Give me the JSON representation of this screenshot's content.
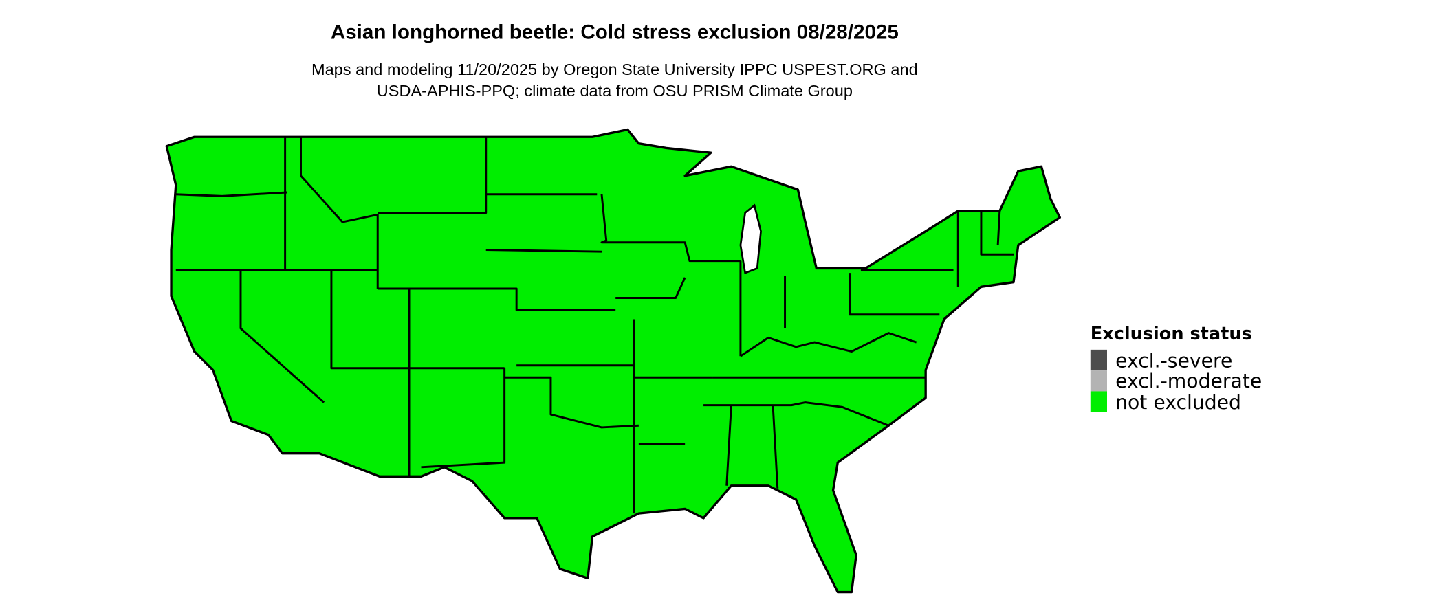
{
  "title": "Asian longhorned beetle: Cold stress exclusion 08/28/2025",
  "subtitle_line1": "Maps and modeling 11/20/2025 by Oregon State University IPPC USPEST.ORG and",
  "subtitle_line2": "USDA-APHIS-PPQ; climate data from OSU PRISM Climate Group",
  "map": {
    "region": "Contiguous United States",
    "fill_status": "not excluded",
    "fill_color": "#00EE00"
  },
  "legend": {
    "title": "Exclusion status",
    "items": [
      {
        "label": "excl.-severe",
        "color": "#4D4D4D"
      },
      {
        "label": "excl.-moderate",
        "color": "#B3B3B3"
      },
      {
        "label": "not excluded",
        "color": "#00EE00"
      }
    ]
  }
}
